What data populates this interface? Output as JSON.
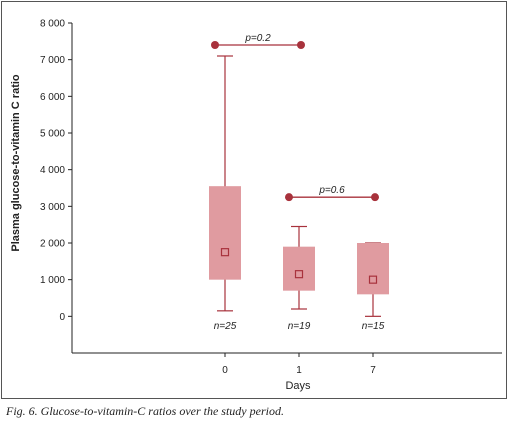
{
  "caption": "Fig. 6. Glucose-to-vitamin-C ratios over the study period.",
  "chart_data": {
    "type": "box",
    "ylabel": "Plasma glucose-to-vitamin C ratio",
    "xlabel": "Days",
    "ylim": [
      -1000,
      8000
    ],
    "yticks": [
      0,
      1000,
      2000,
      3000,
      4000,
      5000,
      6000,
      7000,
      8000
    ],
    "ytick_labels": [
      "0",
      "1 000",
      "2 000",
      "3 000",
      "4 000",
      "5 000",
      "6 000",
      "7 000",
      "8 000"
    ],
    "categories": [
      "0",
      "1",
      "7"
    ],
    "boxes": [
      {
        "label": "0",
        "min": 150,
        "q1": 1000,
        "median": 1750,
        "q3": 3550,
        "max": 7100,
        "n_label": "n=25"
      },
      {
        "label": "1",
        "min": 200,
        "q1": 700,
        "median": 1150,
        "q3": 1900,
        "max": 2450,
        "n_label": "n=19"
      },
      {
        "label": "7",
        "min": 0,
        "q1": 600,
        "median": 1000,
        "q3": 2000,
        "max": 2000,
        "n_label": "n=15"
      }
    ],
    "comparisons": [
      {
        "from": "0",
        "to": "1",
        "y": 7400,
        "label": "p=0.2"
      },
      {
        "from": "1",
        "to": "7",
        "y": 3250,
        "label": "p=0.6"
      }
    ],
    "colors": {
      "box_fill": "#e09ba0",
      "box_stroke": "#a8323c",
      "marker": "#a8323c",
      "axis": "#222222"
    }
  }
}
